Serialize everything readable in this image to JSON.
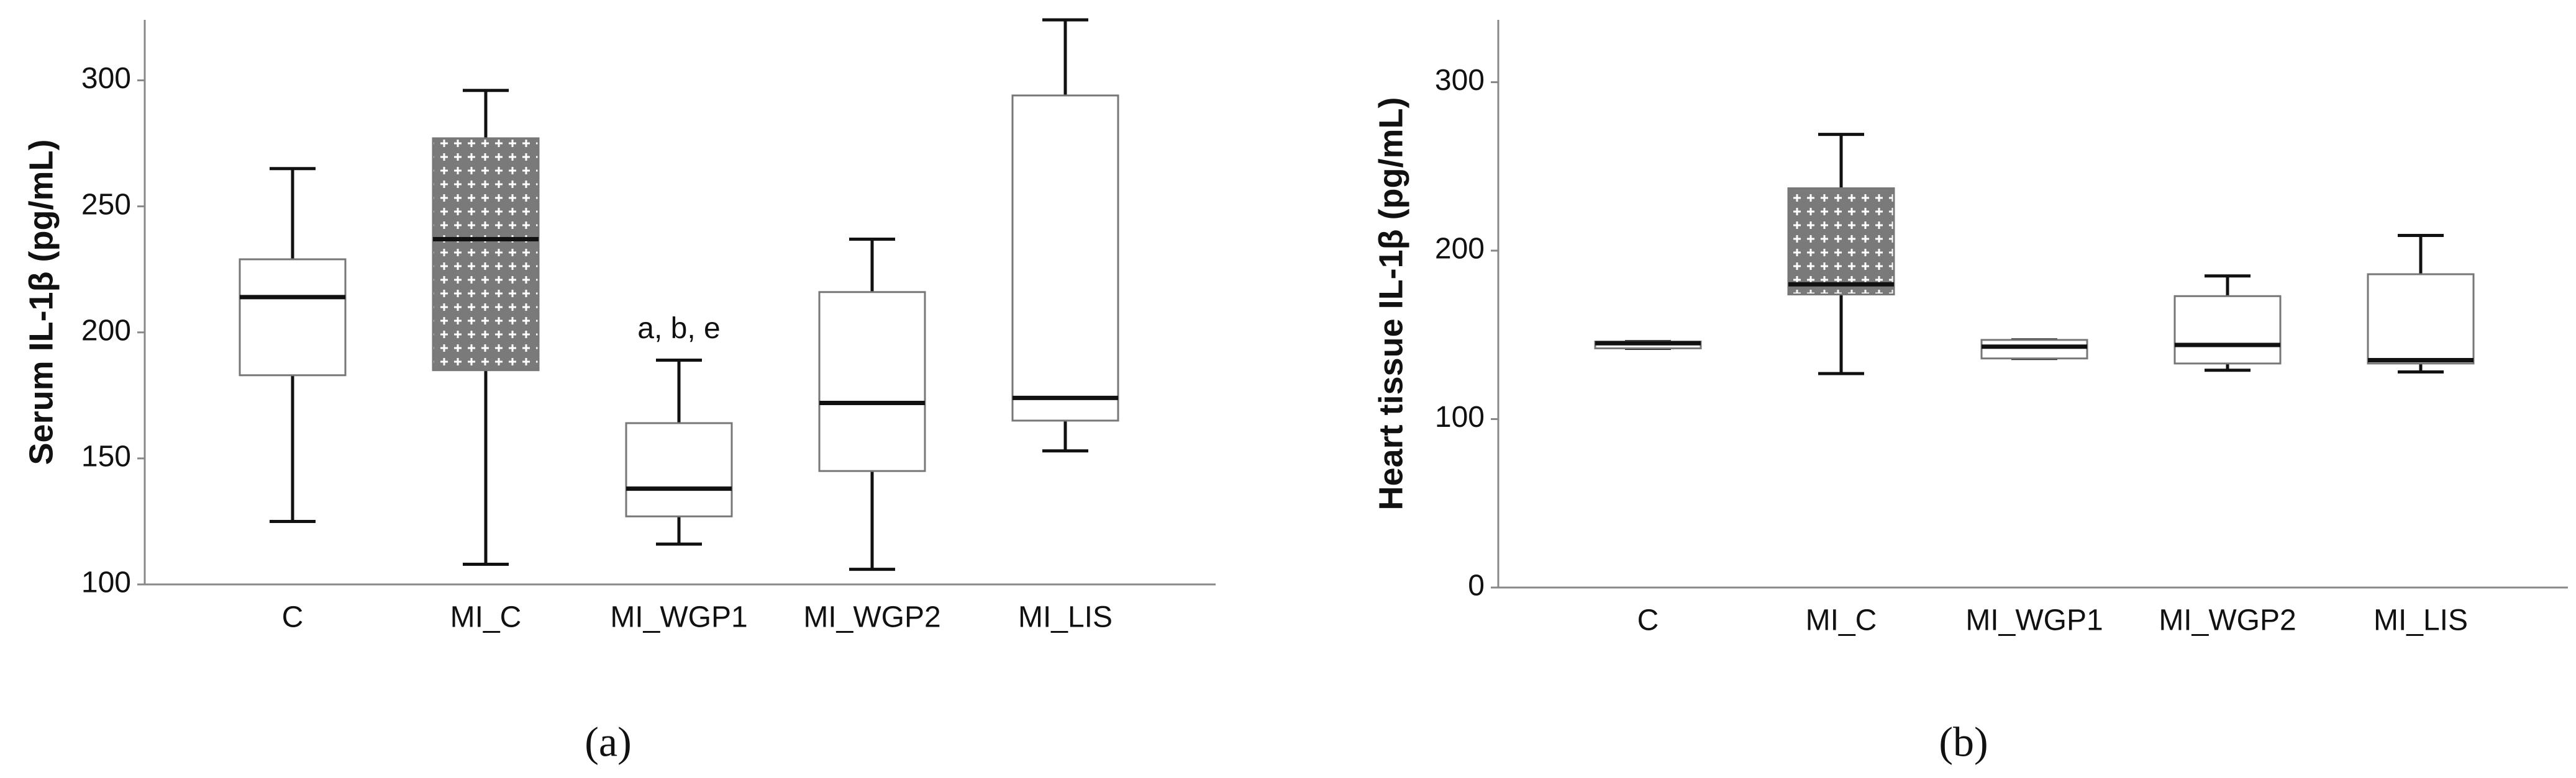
{
  "chart_data": [
    {
      "type": "box",
      "y_label": "Serum IL-1β (pg/mL)",
      "caption": "(a)",
      "categories": [
        "C",
        "MI_C",
        "MI_WGP1",
        "MI_WGP2",
        "MI_LIS"
      ],
      "boxes": [
        {
          "min": 125,
          "q1": 183,
          "median": 214,
          "q3": 229,
          "max": 265
        },
        {
          "min": 108,
          "q1": 185,
          "median": 237,
          "q3": 277,
          "max": 296
        },
        {
          "min": 116,
          "q1": 127,
          "median": 138,
          "q3": 164,
          "max": 189
        },
        {
          "min": 106,
          "q1": 145,
          "median": 172,
          "q3": 216,
          "max": 237
        },
        {
          "min": 153,
          "q1": 165,
          "median": 174,
          "q3": 294,
          "max": 324
        }
      ],
      "box_colors": [
        "#ffffff",
        "#8a8a8a",
        "#ffffff",
        "#ffffff",
        "#ffffff"
      ],
      "hatched": [
        false,
        true,
        false,
        false,
        false
      ],
      "annotations": [
        {
          "text": "a, b, e",
          "category": "MI_WGP1"
        }
      ],
      "ylim": [
        100,
        324
      ],
      "yticks": [
        100,
        150,
        200,
        250,
        300
      ],
      "grid": false
    },
    {
      "type": "box",
      "y_label": "Heart tissue IL-1β (pg/mL)",
      "caption": "(b)",
      "categories": [
        "C",
        "MI_C",
        "MI_WGP1",
        "MI_WGP2",
        "MI_LIS"
      ],
      "boxes": [
        {
          "min": 142,
          "q1": 142,
          "median": 145,
          "q3": 146,
          "max": 146
        },
        {
          "min": 127,
          "q1": 174,
          "median": 180,
          "q3": 237,
          "max": 269
        },
        {
          "min": 136,
          "q1": 136,
          "median": 143,
          "q3": 147,
          "max": 147
        },
        {
          "min": 129,
          "q1": 133,
          "median": 144,
          "q3": 173,
          "max": 185
        },
        {
          "min": 128,
          "q1": 133,
          "median": 135,
          "q3": 186,
          "max": 209
        }
      ],
      "box_colors": [
        "#ffffff",
        "#8a8a8a",
        "#ffffff",
        "#ffffff",
        "#ffffff"
      ],
      "hatched": [
        false,
        true,
        false,
        false,
        false
      ],
      "ylim": [
        0,
        337
      ],
      "yticks": [
        0,
        100,
        200,
        300
      ],
      "grid": false
    }
  ]
}
